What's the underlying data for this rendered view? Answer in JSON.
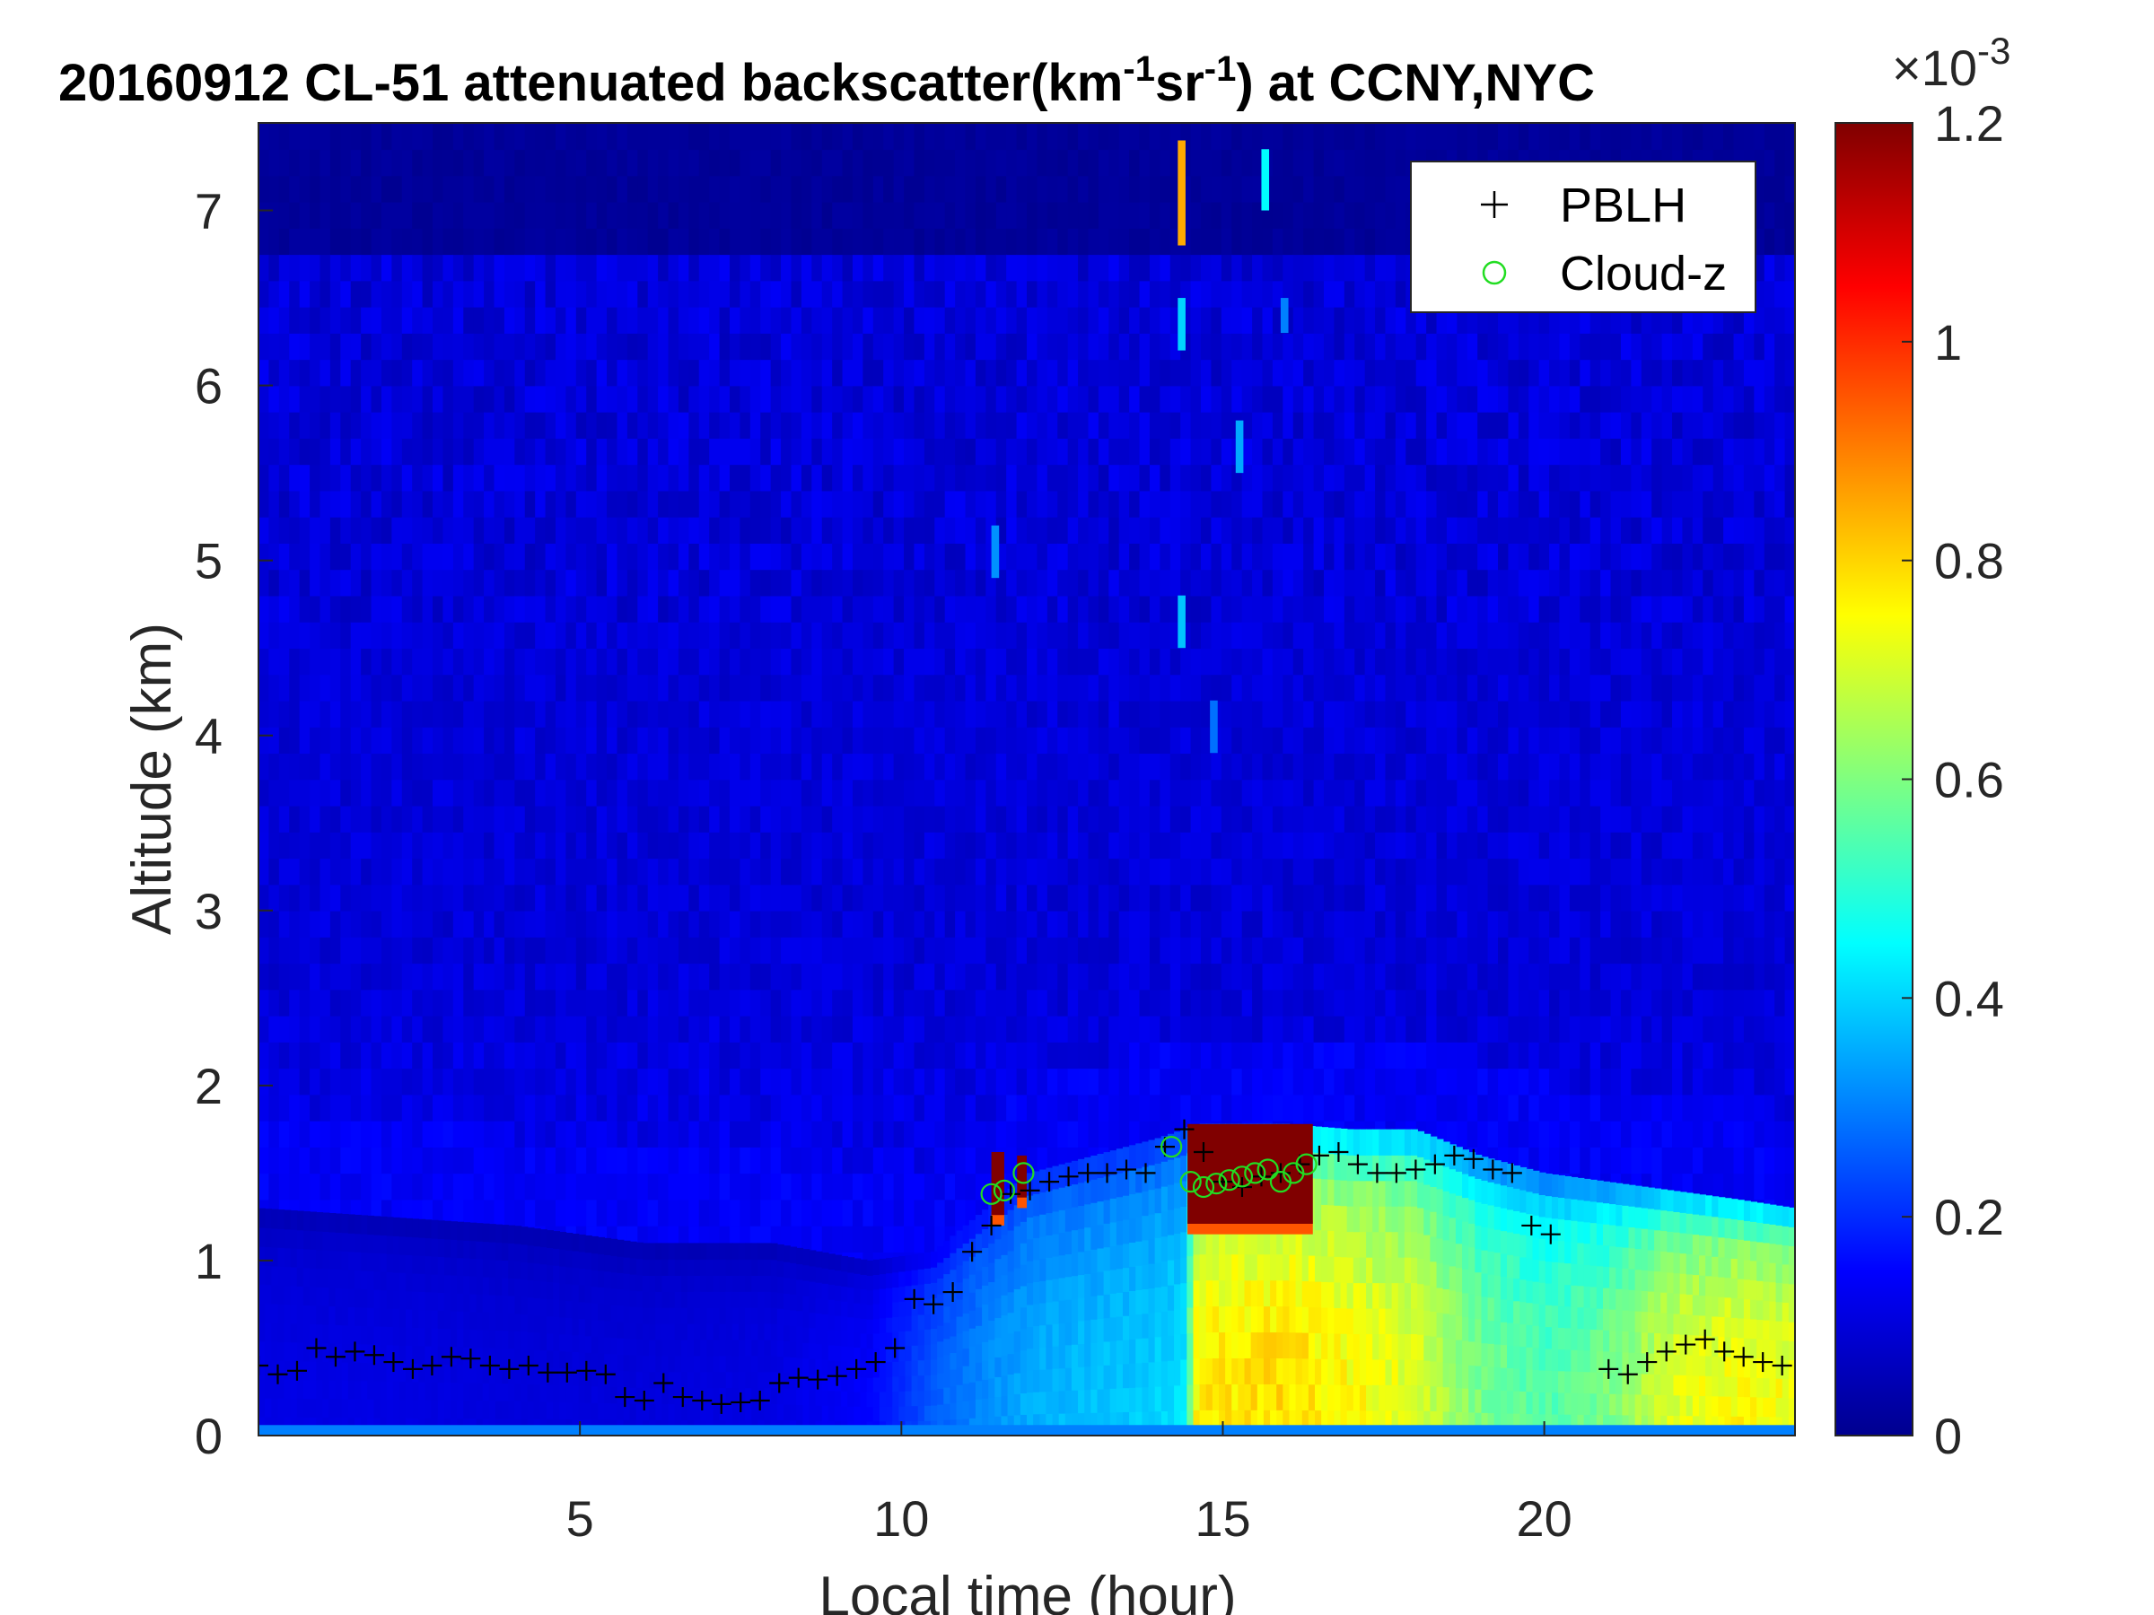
{
  "chart_data": {
    "type": "heatmap",
    "title_parts": {
      "prefix": "20160912  CL-51 attenuated backscatter(km",
      "sup1": "-1",
      "middle": "sr",
      "sup2": "-1",
      "suffix": ") at CCNY,NYC"
    },
    "xlabel": "Local time (hour)",
    "ylabel": "Altitude (km)",
    "xlim": [
      0,
      23.9
    ],
    "ylim": [
      0,
      7.5
    ],
    "xticks": [
      "5",
      "10",
      "15",
      "20"
    ],
    "xtick_values": [
      5,
      10,
      15,
      20
    ],
    "yticks": [
      "0",
      "1",
      "2",
      "3",
      "4",
      "5",
      "6",
      "7"
    ],
    "ytick_values": [
      0,
      1,
      2,
      3,
      4,
      5,
      6,
      7
    ],
    "colorbar": {
      "colormap": "jet",
      "range": [
        0,
        1.2
      ],
      "ticks": [
        "0",
        "0.2",
        "0.4",
        "0.6",
        "0.8",
        "1",
        "1.2"
      ],
      "tick_values": [
        0,
        0.2,
        0.4,
        0.6,
        0.8,
        1.0,
        1.2
      ],
      "exponent_base": "×10",
      "exponent": "-3"
    },
    "legend": {
      "location": "top-right",
      "entries": [
        {
          "name": "PBLH",
          "marker": "+",
          "color": "#000000"
        },
        {
          "name": "Cloud-z",
          "marker": "o",
          "color": "#22dd22"
        }
      ]
    },
    "layer_profile": {
      "time": [
        0,
        2,
        4,
        6,
        8,
        9.5,
        10.5,
        11,
        11.5,
        12,
        13,
        14,
        14.4,
        14.6,
        16,
        17,
        18,
        19,
        20,
        21,
        22,
        23,
        23.9
      ],
      "top_km": [
        1.3,
        1.25,
        1.2,
        1.1,
        1.1,
        1.0,
        1.05,
        1.2,
        1.35,
        1.5,
        1.6,
        1.7,
        1.75,
        1.78,
        1.78,
        1.75,
        1.75,
        1.6,
        1.5,
        1.45,
        1.4,
        1.35,
        1.3
      ],
      "intensity": [
        0.12,
        0.12,
        0.11,
        0.11,
        0.12,
        0.15,
        0.26,
        0.3,
        0.33,
        0.36,
        0.38,
        0.4,
        0.42,
        0.78,
        0.8,
        0.76,
        0.72,
        0.6,
        0.55,
        0.6,
        0.72,
        0.76,
        0.74
      ]
    },
    "cloud_blocks": [
      {
        "t0": 11.4,
        "t1": 11.6,
        "z0": 1.2,
        "z1": 1.62
      },
      {
        "t0": 11.8,
        "t1": 11.95,
        "z0": 1.3,
        "z1": 1.6
      },
      {
        "t0": 14.45,
        "t1": 16.4,
        "z0": 1.15,
        "z1": 1.78
      }
    ],
    "pblh": {
      "x": [
        0,
        0.3,
        0.6,
        0.9,
        1.2,
        1.5,
        1.8,
        2.1,
        2.4,
        2.7,
        3.0,
        3.3,
        3.6,
        3.9,
        4.2,
        4.5,
        4.8,
        5.1,
        5.4,
        5.7,
        6.0,
        6.3,
        6.6,
        6.9,
        7.2,
        7.5,
        7.8,
        8.1,
        8.4,
        8.7,
        9.0,
        9.3,
        9.6,
        9.9,
        10.2,
        10.5,
        10.8,
        11.1,
        11.4,
        11.7,
        12.0,
        12.3,
        12.6,
        12.9,
        13.2,
        13.5,
        13.8,
        14.1,
        14.4,
        14.7,
        15.0,
        15.3,
        15.6,
        15.9,
        16.2,
        16.5,
        16.8,
        17.1,
        17.4,
        17.7,
        18.0,
        18.3,
        18.6,
        18.9,
        19.2,
        19.5,
        19.8,
        20.1,
        21.0,
        21.3,
        21.6,
        21.9,
        22.2,
        22.5,
        22.8,
        23.1,
        23.4,
        23.7
      ],
      "y": [
        0.4,
        0.35,
        0.37,
        0.5,
        0.45,
        0.48,
        0.46,
        0.42,
        0.38,
        0.4,
        0.45,
        0.44,
        0.4,
        0.38,
        0.4,
        0.36,
        0.36,
        0.37,
        0.35,
        0.22,
        0.2,
        0.3,
        0.22,
        0.2,
        0.18,
        0.19,
        0.2,
        0.3,
        0.33,
        0.32,
        0.34,
        0.38,
        0.42,
        0.5,
        0.78,
        0.75,
        0.82,
        1.05,
        1.2,
        1.38,
        1.4,
        1.45,
        1.48,
        1.5,
        1.5,
        1.52,
        1.5,
        1.65,
        1.75,
        1.62,
        1.45,
        1.42,
        1.48,
        1.5,
        1.55,
        1.6,
        1.62,
        1.55,
        1.5,
        1.5,
        1.52,
        1.55,
        1.6,
        1.58,
        1.52,
        1.5,
        1.2,
        1.15,
        0.38,
        0.35,
        0.42,
        0.48,
        0.52,
        0.55,
        0.48,
        0.45,
        0.42,
        0.4
      ]
    },
    "cloud_z": {
      "x": [
        11.4,
        11.6,
        11.9,
        14.2,
        14.5,
        14.7,
        14.9,
        15.1,
        15.3,
        15.5,
        15.7,
        15.9,
        16.1,
        16.3
      ],
      "y": [
        1.38,
        1.4,
        1.5,
        1.65,
        1.45,
        1.42,
        1.44,
        1.46,
        1.48,
        1.5,
        1.52,
        1.45,
        1.5,
        1.55
      ]
    },
    "upper_streaks": [
      {
        "t": 14.3,
        "z0": 6.8,
        "z1": 7.4,
        "v": 0.85
      },
      {
        "t": 15.6,
        "z0": 7.0,
        "z1": 7.35,
        "v": 0.45
      },
      {
        "t": 14.3,
        "z0": 6.2,
        "z1": 6.5,
        "v": 0.4
      },
      {
        "t": 14.3,
        "z0": 4.5,
        "z1": 4.8,
        "v": 0.38
      },
      {
        "t": 11.4,
        "z0": 4.9,
        "z1": 5.2,
        "v": 0.32
      },
      {
        "t": 15.2,
        "z0": 5.5,
        "z1": 5.8,
        "v": 0.35
      },
      {
        "t": 15.9,
        "z0": 6.3,
        "z1": 6.5,
        "v": 0.3
      },
      {
        "t": 14.8,
        "z0": 3.9,
        "z1": 4.2,
        "v": 0.28
      }
    ]
  }
}
